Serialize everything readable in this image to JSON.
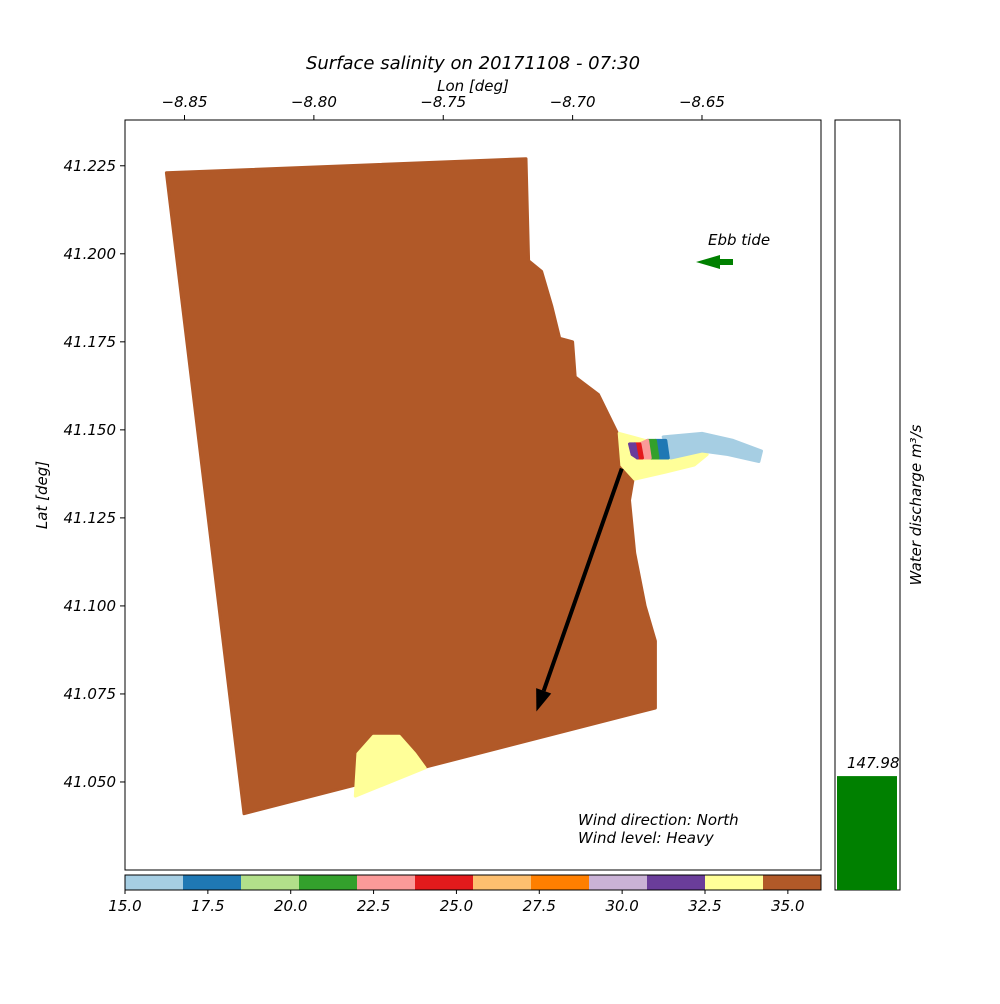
{
  "chart_data": {
    "type": "heatmap",
    "title": "Surface salinity on 20171108 - 07:30",
    "xlabel": "Lon [deg]",
    "ylabel": "Lat [deg]",
    "xlim": [
      -8.873,
      -8.604
    ],
    "ylim": [
      41.025,
      41.238
    ],
    "x_ticks": [
      -8.85,
      -8.8,
      -8.75,
      -8.7,
      -8.65
    ],
    "x_tick_labels": [
      "−8.85",
      "−8.80",
      "−8.75",
      "−8.70",
      "−8.65"
    ],
    "y_ticks": [
      41.05,
      41.075,
      41.1,
      41.125,
      41.15,
      41.175,
      41.2,
      41.225
    ],
    "y_tick_labels": [
      "41.050",
      "41.075",
      "41.100",
      "41.125",
      "41.150",
      "41.175",
      "41.200",
      "41.225"
    ],
    "grid": false,
    "colorbar": {
      "range": [
        15.0,
        36.0
      ],
      "ticks": [
        15.0,
        17.5,
        20.0,
        22.5,
        25.0,
        27.5,
        30.0,
        32.5,
        35.0
      ],
      "tick_labels": [
        "15.0",
        "17.5",
        "20.0",
        "22.5",
        "25.0",
        "27.5",
        "30.0",
        "32.5",
        "35.0"
      ],
      "colors": [
        "#a6cee3",
        "#1f78b4",
        "#b2df8a",
        "#33a02c",
        "#fb9a99",
        "#e31a1c",
        "#fdbf6f",
        "#ff7f00",
        "#cab2d6",
        "#6a3d9a",
        "#ffff99",
        "#b15928"
      ]
    },
    "salinity_regions": [
      {
        "value": 35.5,
        "color": "#b15928",
        "polygon": [
          [
            -8.857,
            41.223
          ],
          [
            -8.718,
            41.227
          ],
          [
            -8.717,
            41.198
          ],
          [
            -8.712,
            41.195
          ],
          [
            -8.708,
            41.185
          ],
          [
            -8.705,
            41.176
          ],
          [
            -8.7,
            41.175
          ],
          [
            -8.699,
            41.165
          ],
          [
            -8.69,
            41.16
          ],
          [
            -8.684,
            41.151
          ],
          [
            -8.68,
            41.145
          ],
          [
            -8.675,
            41.143
          ],
          [
            -8.678,
            41.13
          ],
          [
            -8.676,
            41.115
          ],
          [
            -8.672,
            41.1
          ],
          [
            -8.668,
            41.09
          ],
          [
            -8.668,
            41.071
          ],
          [
            -8.827,
            41.041
          ]
        ]
      },
      {
        "value": 33.5,
        "color": "#ffff99",
        "polygon": [
          [
            -8.784,
            41.046
          ],
          [
            -8.783,
            41.058
          ],
          [
            -8.777,
            41.063
          ],
          [
            -8.767,
            41.063
          ],
          [
            -8.761,
            41.058
          ],
          [
            -8.757,
            41.054
          ]
        ]
      },
      {
        "value": 33.5,
        "color": "#ffff99",
        "polygon": [
          [
            -8.682,
            41.149
          ],
          [
            -8.672,
            41.147
          ],
          [
            -8.657,
            41.145
          ],
          [
            -8.648,
            41.143
          ],
          [
            -8.653,
            41.14
          ],
          [
            -8.664,
            41.138
          ],
          [
            -8.676,
            41.136
          ],
          [
            -8.681,
            41.14
          ]
        ]
      },
      {
        "value": 16.0,
        "color": "#a6cee3",
        "polygon": [
          [
            -8.665,
            41.148
          ],
          [
            -8.65,
            41.149
          ],
          [
            -8.638,
            41.147
          ],
          [
            -8.627,
            41.144
          ],
          [
            -8.628,
            41.141
          ],
          [
            -8.64,
            41.143
          ],
          [
            -8.65,
            41.144
          ],
          [
            -8.662,
            41.142
          ]
        ]
      },
      {
        "value": 17.0,
        "color": "#1f78b4",
        "polygon": [
          [
            -8.668,
            41.147
          ],
          [
            -8.664,
            41.147
          ],
          [
            -8.663,
            41.142
          ],
          [
            -8.667,
            41.142
          ]
        ]
      },
      {
        "value": 21.0,
        "color": "#33a02c",
        "polygon": [
          [
            -8.671,
            41.147
          ],
          [
            -8.668,
            41.147
          ],
          [
            -8.667,
            41.142
          ],
          [
            -8.67,
            41.142
          ]
        ]
      },
      {
        "value": 23.0,
        "color": "#fb9a99",
        "polygon": [
          [
            -8.674,
            41.146
          ],
          [
            -8.671,
            41.147
          ],
          [
            -8.67,
            41.142
          ],
          [
            -8.673,
            41.142
          ]
        ]
      },
      {
        "value": 25.0,
        "color": "#e31a1c",
        "polygon": [
          [
            -8.676,
            41.146
          ],
          [
            -8.674,
            41.146
          ],
          [
            -8.673,
            41.142
          ],
          [
            -8.675,
            41.142
          ]
        ]
      },
      {
        "value": 31.5,
        "color": "#6a3d9a",
        "polygon": [
          [
            -8.678,
            41.146
          ],
          [
            -8.676,
            41.146
          ],
          [
            -8.675,
            41.142
          ],
          [
            -8.677,
            41.143
          ]
        ]
      }
    ],
    "wind_arrow": {
      "from": [
        -8.681,
        41.139
      ],
      "to": [
        -8.714,
        41.07
      ]
    },
    "annotations": {
      "tide": "Ebb tide",
      "wind_direction": "Wind direction: North",
      "wind_level": "Wind level: Heavy"
    },
    "discharge": {
      "label": "Water discharge m³/s",
      "value": 147.98,
      "value_label": "147.98",
      "ymax": 1000,
      "color": "#008000"
    }
  }
}
